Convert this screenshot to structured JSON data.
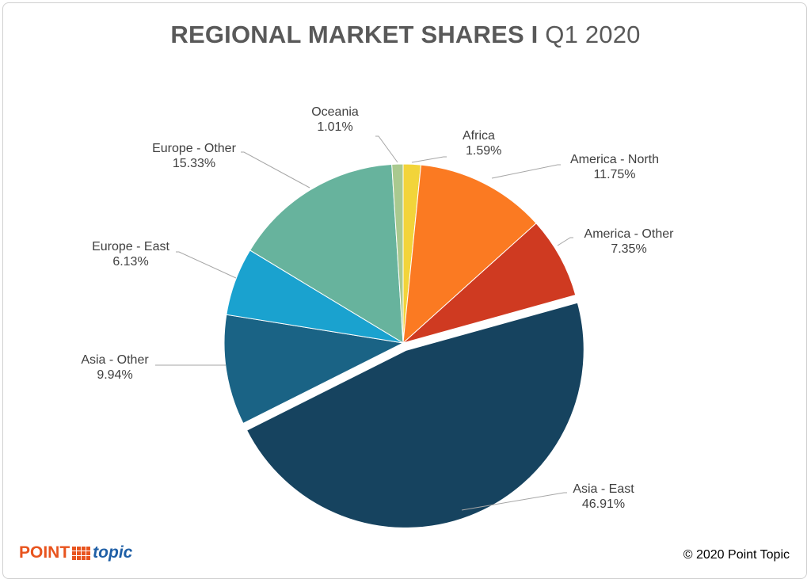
{
  "chart_data": {
    "type": "pie",
    "title_bold": "REGIONAL MARKET SHARES I",
    "title_rest": " Q1 2020",
    "start_angle_deg": 0,
    "direction": "clockwise",
    "slices": [
      {
        "name": "Africa",
        "value": 1.59,
        "label": "1.59%",
        "color": "#f2d43a",
        "anchor": "start"
      },
      {
        "name": "America - North",
        "value": 11.75,
        "label": "11.75%",
        "color": "#fb7a22",
        "anchor": "middle"
      },
      {
        "name": "America - Other",
        "value": 7.35,
        "label": "7.35%",
        "color": "#cf3a21",
        "anchor": "middle"
      },
      {
        "name": "Asia - East",
        "value": 46.91,
        "label": "46.91%",
        "color": "#16435f",
        "anchor": "middle",
        "exploded": true
      },
      {
        "name": "Asia - Other",
        "value": 9.94,
        "label": "9.94%",
        "color": "#1a6385",
        "anchor": "middle"
      },
      {
        "name": "Europe - East",
        "value": 6.13,
        "label": "6.13%",
        "color": "#1aa2cf",
        "anchor": "middle"
      },
      {
        "name": "Europe - Other",
        "value": 15.33,
        "label": "15.33%",
        "color": "#67b39d",
        "anchor": "middle"
      },
      {
        "name": "Oceania",
        "value": 1.01,
        "label": "1.01%",
        "color": "#a9c98f",
        "anchor": "middle"
      }
    ]
  },
  "footer": {
    "logo_point": "POINT",
    "logo_topic": "topic",
    "copyright": "© 2020 Point Topic"
  }
}
